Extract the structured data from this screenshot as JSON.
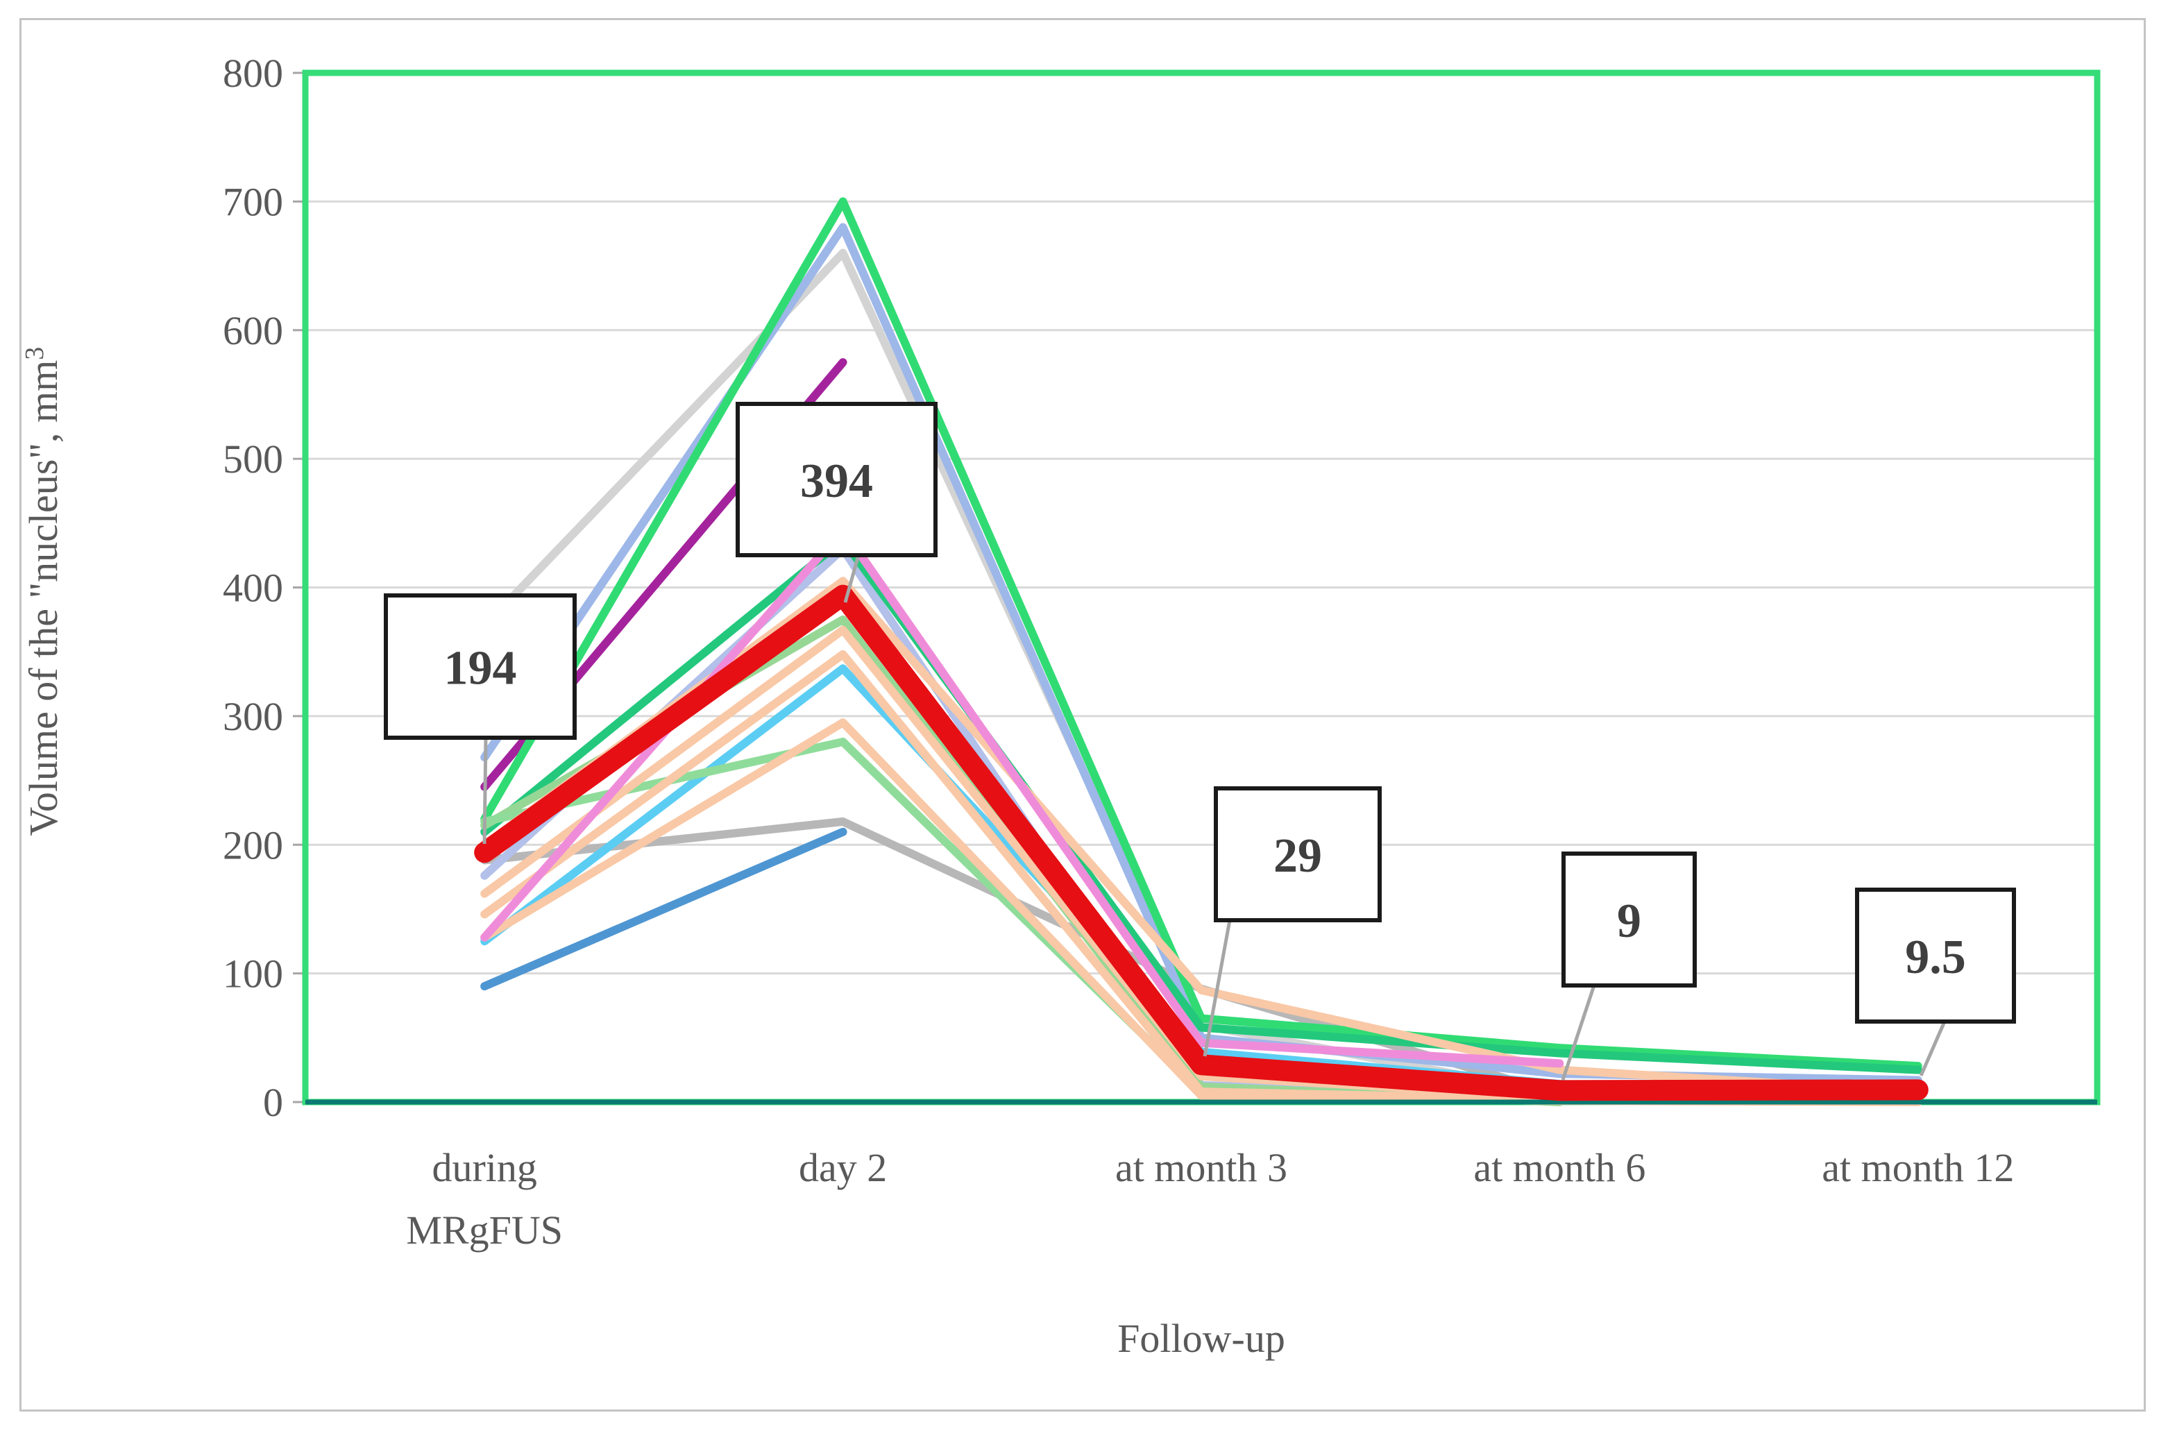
{
  "figure": {
    "background": "#ffffff",
    "border_color": "#c4c4c4"
  },
  "chart_data": {
    "type": "line",
    "title": "",
    "x_axis_title": "Follow-up",
    "y_axis_title": {
      "text": "Volume of the \"nucleus\", mm",
      "sup": "3"
    },
    "categories": [
      "during MRgFUS",
      "day 2",
      "at month 3",
      "at month 6",
      "at month 12"
    ],
    "category_lines": [
      [
        "during",
        "MRgFUS"
      ],
      [
        "day 2"
      ],
      [
        "at month 3"
      ],
      [
        "at month 6"
      ],
      [
        "at month 12"
      ]
    ],
    "ylim": [
      0,
      800
    ],
    "ytick_step": 100,
    "ytick_labels": [
      "0",
      "100",
      "200",
      "300",
      "400",
      "500",
      "600",
      "700",
      "800"
    ],
    "grid": "horizontal-only",
    "legend": "none",
    "colors": {
      "plot_border": "#35dc78",
      "x_axis_line": "#0a7a72",
      "gridline": "#d9d9d9",
      "tick_label": "#595959",
      "callout_box_fill": "#ffffff",
      "callout_box_border": "#1a1a1a",
      "callout_text": "#3f3f3f",
      "callout_leader": "#a6a6a6",
      "median_red": "#e50f14"
    },
    "median_series": {
      "name": "median",
      "color": "#e50f14",
      "values": [
        194,
        394,
        29,
        9,
        9.5
      ],
      "labels": [
        "194",
        "394",
        "29",
        "9",
        "9.5"
      ]
    },
    "patient_series": [
      {
        "name": "patient-lightgray",
        "color": "#d3d3d3",
        "values": [
          370,
          660,
          60,
          6,
          4
        ]
      },
      {
        "name": "patient-silver",
        "color": "#b7b7b7",
        "values": [
          188,
          218,
          88,
          6,
          4
        ]
      },
      {
        "name": "patient-purple",
        "color": "#a4239d",
        "values": [
          245,
          575,
          null,
          null,
          null
        ]
      },
      {
        "name": "patient-cornflower",
        "color": "#9db7e8",
        "values": [
          268,
          680,
          50,
          22,
          17
        ]
      },
      {
        "name": "patient-periwinkle",
        "color": "#b2c0ea",
        "values": [
          176,
          430,
          13,
          5,
          3
        ]
      },
      {
        "name": "patient-steelblue",
        "color": "#4e96d2",
        "values": [
          90,
          210,
          null,
          null,
          null
        ]
      },
      {
        "name": "patient-skyblue",
        "color": "#5bcdf3",
        "values": [
          125,
          337,
          39,
          14,
          5
        ]
      },
      {
        "name": "patient-springgreen",
        "color": "#31db74",
        "values": [
          220,
          700,
          65,
          42,
          28
        ]
      },
      {
        "name": "patient-emerald",
        "color": "#23c87d",
        "values": [
          210,
          437,
          58,
          38,
          25
        ]
      },
      {
        "name": "patient-lightgreen-a",
        "color": "#97d795",
        "values": [
          215,
          375,
          12,
          0,
          null
        ]
      },
      {
        "name": "patient-lightgreen-b",
        "color": "#8fdc9a",
        "values": [
          218,
          280,
          8,
          3,
          2
        ]
      },
      {
        "name": "patient-peach-1",
        "color": "#f9c8a6",
        "values": [
          200,
          405,
          87,
          25,
          8
        ]
      },
      {
        "name": "patient-peach-2",
        "color": "#f9c8a6",
        "values": [
          162,
          367,
          20,
          4,
          2
        ]
      },
      {
        "name": "patient-peach-3",
        "color": "#f9c8a6",
        "values": [
          146,
          348,
          8,
          2,
          1
        ]
      },
      {
        "name": "patient-peach-4",
        "color": "#f9c8a6",
        "values": [
          128,
          295,
          5,
          1,
          0
        ]
      },
      {
        "name": "patient-pink",
        "color": "#ef8cd9",
        "values": [
          128,
          445,
          46,
          30,
          null
        ]
      }
    ]
  }
}
